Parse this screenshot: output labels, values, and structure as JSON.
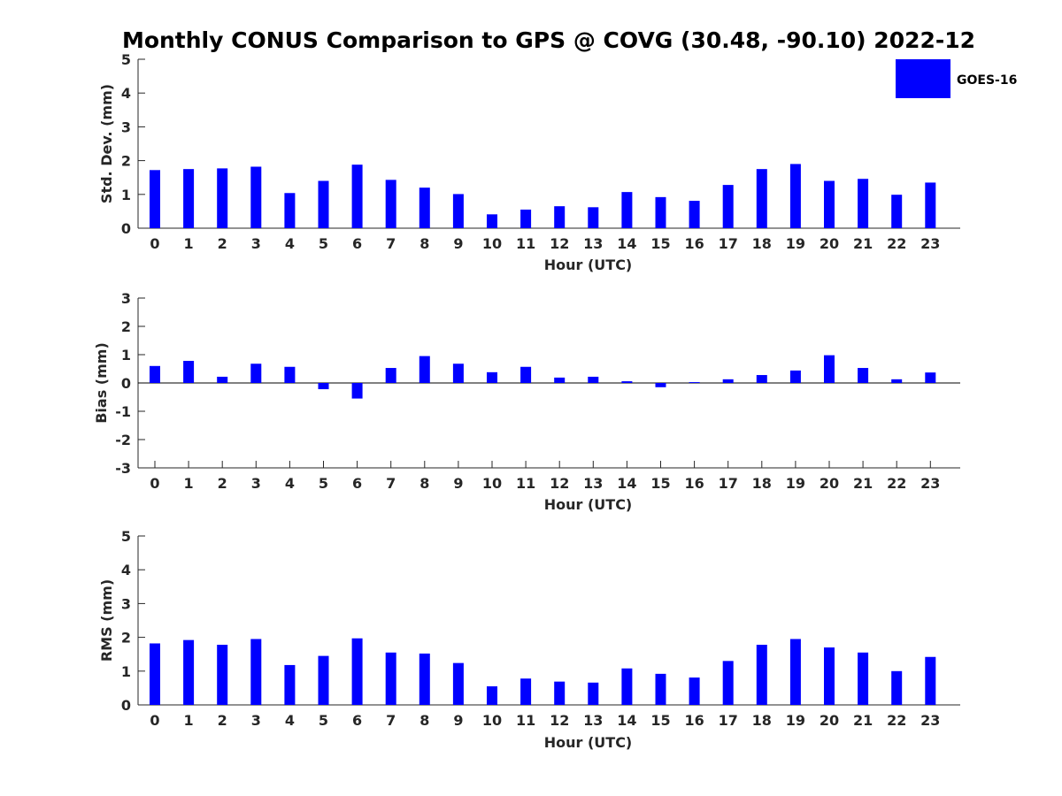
{
  "title": "Monthly CONUS Comparison to GPS @ COVG (30.48, -90.10) 2022-12",
  "legend": {
    "label": "GOES-16",
    "color": "#0000ff"
  },
  "chart_data": [
    {
      "type": "bar",
      "xlabel": "Hour (UTC)",
      "ylabel": "Std. Dev. (mm)",
      "ylim": [
        0,
        5
      ],
      "yticks": [
        0,
        1,
        2,
        3,
        4,
        5
      ],
      "categories": [
        "0",
        "1",
        "2",
        "3",
        "4",
        "5",
        "6",
        "7",
        "8",
        "9",
        "10",
        "11",
        "12",
        "13",
        "14",
        "15",
        "16",
        "17",
        "18",
        "19",
        "20",
        "21",
        "22",
        "23"
      ],
      "series": [
        {
          "name": "GOES-16",
          "color": "#0000ff",
          "values": [
            1.72,
            1.75,
            1.77,
            1.82,
            1.04,
            1.4,
            1.88,
            1.43,
            1.2,
            1.01,
            0.41,
            0.55,
            0.65,
            0.62,
            1.07,
            0.92,
            0.81,
            1.28,
            1.75,
            1.9,
            1.4,
            1.46,
            0.99,
            1.35
          ]
        }
      ],
      "grid": false
    },
    {
      "type": "bar",
      "xlabel": "Hour (UTC)",
      "ylabel": "Bias (mm)",
      "ylim": [
        -3,
        3
      ],
      "yticks": [
        -3,
        -2,
        -1,
        0,
        1,
        2,
        3
      ],
      "categories": [
        "0",
        "1",
        "2",
        "3",
        "4",
        "5",
        "6",
        "7",
        "8",
        "9",
        "10",
        "11",
        "12",
        "13",
        "14",
        "15",
        "16",
        "17",
        "18",
        "19",
        "20",
        "21",
        "22",
        "23"
      ],
      "series": [
        {
          "name": "GOES-16",
          "color": "#0000ff",
          "values": [
            0.6,
            0.78,
            0.22,
            0.68,
            0.57,
            -0.22,
            -0.55,
            0.53,
            0.95,
            0.68,
            0.38,
            0.57,
            0.19,
            0.22,
            0.06,
            -0.15,
            0.03,
            0.13,
            0.28,
            0.44,
            0.98,
            0.53,
            0.13,
            0.37
          ]
        }
      ],
      "grid": false
    },
    {
      "type": "bar",
      "xlabel": "Hour (UTC)",
      "ylabel": "RMS (mm)",
      "ylim": [
        0,
        5
      ],
      "yticks": [
        0,
        1,
        2,
        3,
        4,
        5
      ],
      "categories": [
        "0",
        "1",
        "2",
        "3",
        "4",
        "5",
        "6",
        "7",
        "8",
        "9",
        "10",
        "11",
        "12",
        "13",
        "14",
        "15",
        "16",
        "17",
        "18",
        "19",
        "20",
        "21",
        "22",
        "23"
      ],
      "series": [
        {
          "name": "GOES-16",
          "color": "#0000ff",
          "values": [
            1.82,
            1.92,
            1.78,
            1.95,
            1.18,
            1.45,
            1.97,
            1.55,
            1.52,
            1.24,
            0.55,
            0.78,
            0.69,
            0.66,
            1.08,
            0.92,
            0.81,
            1.3,
            1.78,
            1.95,
            1.7,
            1.55,
            1.0,
            1.42
          ]
        }
      ],
      "grid": false
    }
  ]
}
